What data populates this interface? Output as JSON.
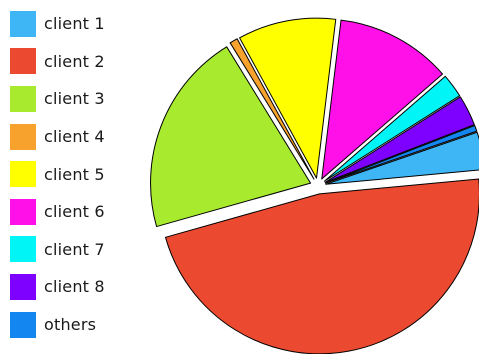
{
  "chart_data": {
    "type": "pie",
    "exploded": true,
    "start_angle_deg": 19,
    "legend_placement": "left",
    "slices": [
      {
        "label": "client 1",
        "value": 3.8,
        "color": "#3eb6f6"
      },
      {
        "label": "client 2",
        "value": 47.1,
        "color": "#eb4a30"
      },
      {
        "label": "client 3",
        "value": 20.6,
        "color": "#a8ea2e"
      },
      {
        "label": "client 4",
        "value": 0.8,
        "color": "#f6a22c"
      },
      {
        "label": "client 5",
        "value": 9.9,
        "color": "#ffff00"
      },
      {
        "label": "client 6",
        "value": 11.7,
        "color": "#ff10e8"
      },
      {
        "label": "client 7",
        "value": 2.4,
        "color": "#00f6f6"
      },
      {
        "label": "client 8",
        "value": 3.1,
        "color": "#7e00ff"
      },
      {
        "label": "others",
        "value": 0.6,
        "color": "#1386ef"
      }
    ]
  }
}
